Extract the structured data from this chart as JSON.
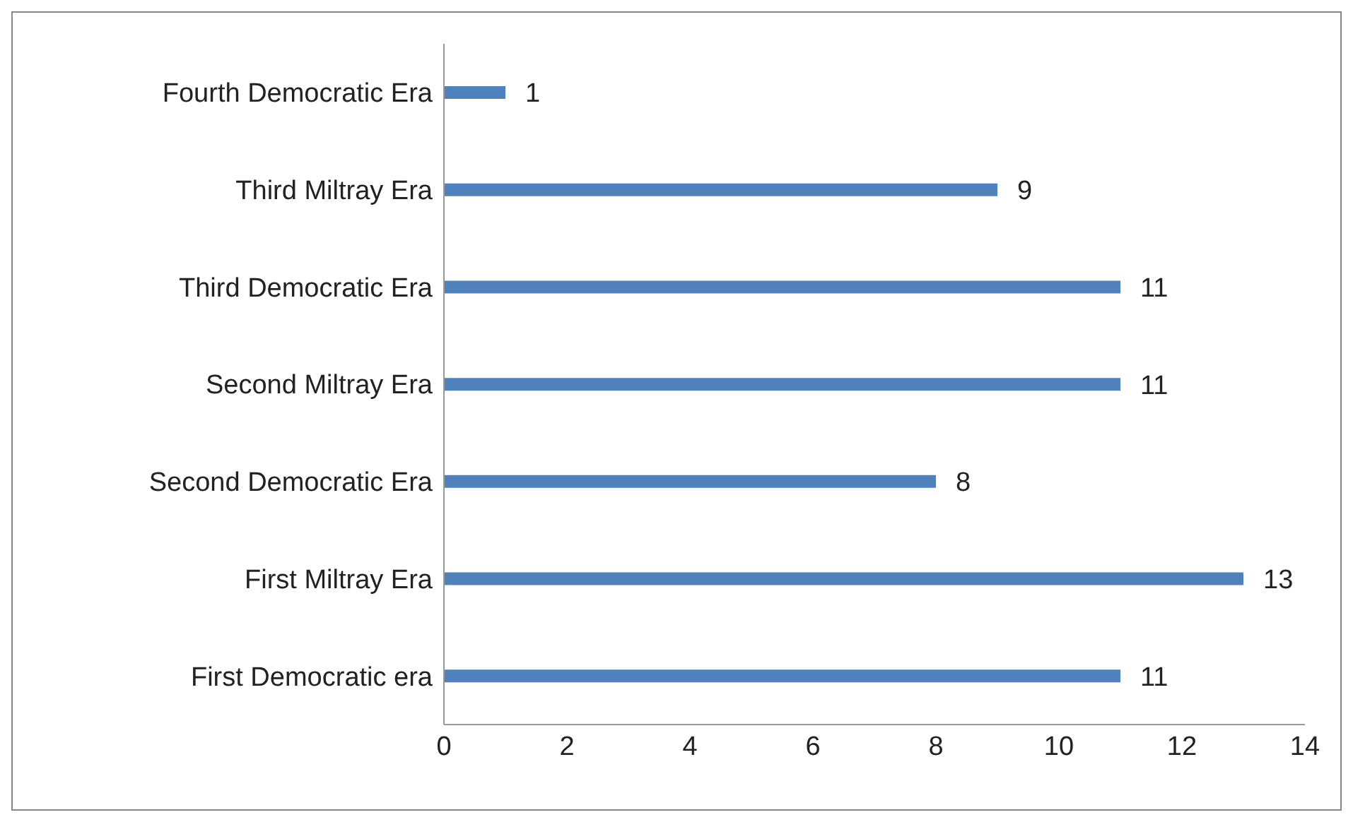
{
  "chart_data": {
    "type": "bar",
    "orientation": "horizontal",
    "categories": [
      "Fourth Democratic Era",
      "Third Miltray Era",
      "Third Democratic Era",
      "Second Miltray Era",
      "Second Democratic Era",
      "First Miltray Era",
      "First Democratic era"
    ],
    "values": [
      1,
      9,
      11,
      11,
      8,
      13,
      11
    ],
    "color": "#4f81bd",
    "xlim": [
      0,
      14
    ],
    "xticks": [
      0,
      2,
      4,
      6,
      8,
      10,
      12,
      14
    ],
    "data_labels": true,
    "grid": false,
    "legend": false
  }
}
